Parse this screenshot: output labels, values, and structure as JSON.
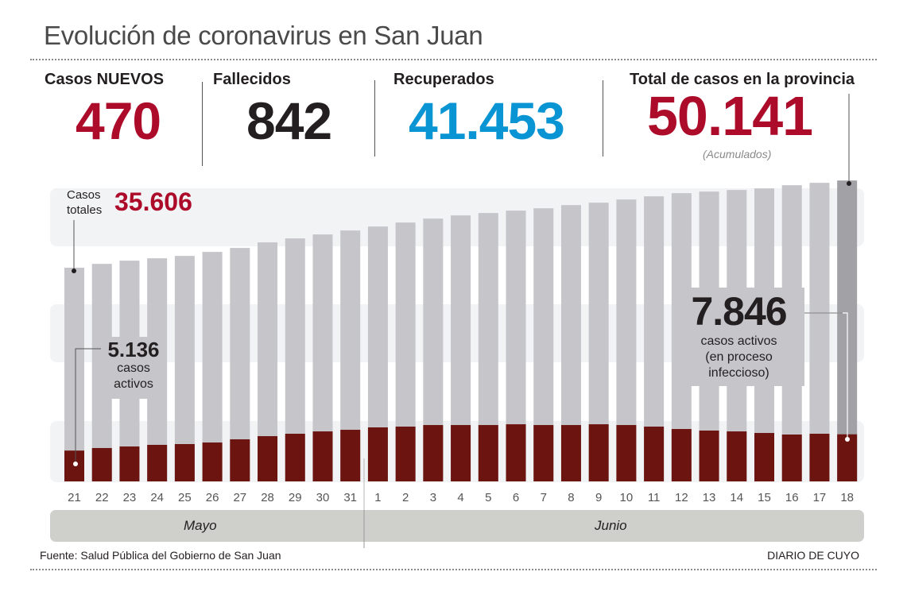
{
  "title": "Evolución de coronavirus en San Juan",
  "stats": {
    "new_cases": {
      "label": "Casos NUEVOS",
      "value": "470",
      "color": "#ad0b2a"
    },
    "deaths": {
      "label": "Fallecidos",
      "value": "842",
      "color": "#231f20"
    },
    "recovered": {
      "label": "Recuperados",
      "value": "41.453",
      "color": "#0994d3"
    },
    "total": {
      "label": "Total de casos en la provincia",
      "value": "50.141",
      "color": "#ad0b2a",
      "note": "(Acumulados)"
    }
  },
  "annotations": {
    "first_total_label_1": "Casos",
    "first_total_label_2": "totales",
    "first_total_value": "35.606",
    "first_active_value": "5.136",
    "first_active_text_1": "casos",
    "first_active_text_2": "activos",
    "last_active_value": "7.846",
    "last_active_text_1": "casos activos",
    "last_active_text_2": "(en proceso",
    "last_active_text_3": "infeccioso)"
  },
  "months": {
    "may": "Mayo",
    "june": "Junio"
  },
  "footer": {
    "source": "Fuente: Salud Pública del Gobierno de San Juan",
    "brand": "DIARIO DE CUYO"
  },
  "colors": {
    "total_bar": "#c5c5ca",
    "total_bar_last": "#a2a2a6",
    "active_bar": "#6b1410",
    "accent_red": "#ad0b2a"
  },
  "chart_data": {
    "type": "bar",
    "title": "Evolución de coronavirus en San Juan",
    "xlabel": "",
    "ylabel": "",
    "categories": [
      "21",
      "22",
      "23",
      "24",
      "25",
      "26",
      "27",
      "28",
      "29",
      "30",
      "31",
      "1",
      "2",
      "3",
      "4",
      "5",
      "6",
      "7",
      "8",
      "9",
      "10",
      "11",
      "12",
      "13",
      "14",
      "15",
      "16",
      "17",
      "18"
    ],
    "category_groups": [
      {
        "label": "Mayo",
        "from": "21",
        "to": "31"
      },
      {
        "label": "Junio",
        "from": "1",
        "to": "18"
      }
    ],
    "ylim": [
      0,
      52000
    ],
    "grid": false,
    "series": [
      {
        "name": "Casos totales",
        "values": [
          35606,
          36250,
          36780,
          37180,
          37570,
          38240,
          38900,
          39830,
          40490,
          41150,
          41810,
          42470,
          43130,
          43790,
          44320,
          44720,
          45120,
          45510,
          46040,
          46440,
          46970,
          47500,
          48030,
          48290,
          48560,
          48820,
          49350,
          49750,
          50141
        ]
      },
      {
        "name": "Casos activos",
        "values": [
          5136,
          5560,
          5820,
          6090,
          6220,
          6480,
          7010,
          7540,
          7940,
          8330,
          8600,
          9000,
          9130,
          9390,
          9390,
          9390,
          9520,
          9390,
          9390,
          9520,
          9390,
          9130,
          8730,
          8470,
          8330,
          8070,
          7810,
          7940,
          7846
        ]
      }
    ]
  }
}
